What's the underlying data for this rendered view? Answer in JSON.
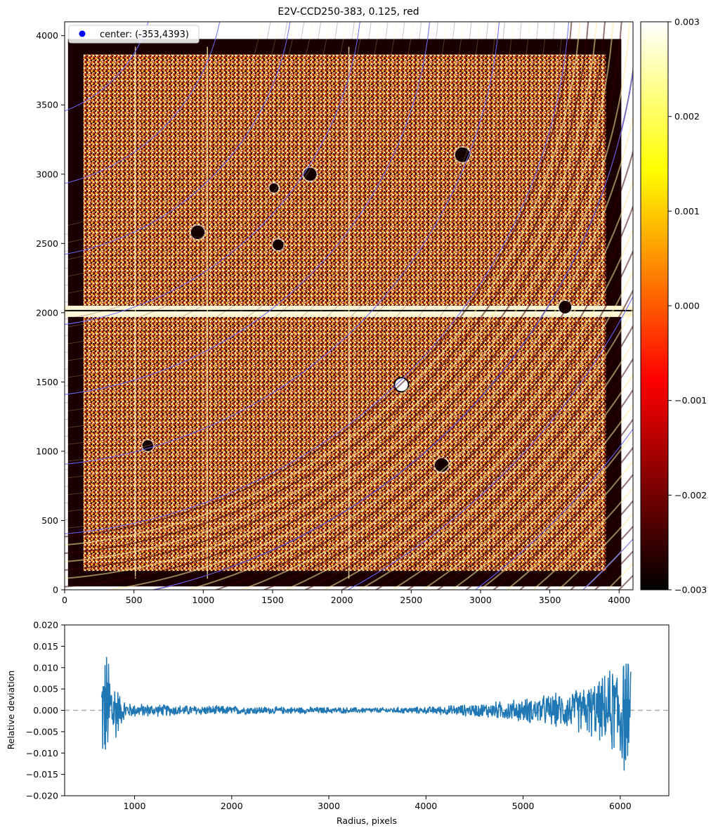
{
  "chart_data": [
    {
      "type": "heatmap",
      "title": "E2V-CCD250-383, 0.125, red",
      "x_ticks": [
        "0",
        "500",
        "1000",
        "1500",
        "2000",
        "2500",
        "3000",
        "3500",
        "4000"
      ],
      "y_ticks": [
        "0",
        "500",
        "1000",
        "1500",
        "2000",
        "2500",
        "3000",
        "3500",
        "4000"
      ],
      "xlim": [
        0,
        4100
      ],
      "ylim": [
        0,
        4100
      ],
      "colormap": "hot",
      "colorbar": {
        "range": [
          -0.003,
          0.003
        ],
        "ticks": [
          "0.003",
          "0.002",
          "0.001",
          "0.000",
          "−0.001",
          "−0.002",
          "−0.003"
        ]
      },
      "legend": {
        "placement": "top-left",
        "marker_color": "#0000ff",
        "label": "center: (-353,4393)"
      },
      "center": {
        "x": -353,
        "y": 4393
      },
      "ring_radii": [
        1000,
        1500,
        2000,
        2500,
        3000,
        3500,
        4000,
        4500,
        5000,
        5500,
        6000
      ],
      "ring_color": "#6a6aff",
      "features": {
        "horizontal_gap_y": 2010,
        "column_defects_x": [
          510,
          1030,
          2050
        ],
        "spots": [
          {
            "x": 2870,
            "y": 3140,
            "r": 38,
            "hollow": false
          },
          {
            "x": 1770,
            "y": 3000,
            "r": 32,
            "hollow": false
          },
          {
            "x": 960,
            "y": 2580,
            "r": 34,
            "hollow": false
          },
          {
            "x": 1540,
            "y": 2490,
            "r": 24,
            "hollow": false
          },
          {
            "x": 1510,
            "y": 2900,
            "r": 18,
            "hollow": false
          },
          {
            "x": 3610,
            "y": 2040,
            "r": 30,
            "hollow": false
          },
          {
            "x": 2430,
            "y": 1480,
            "r": 36,
            "hollow": true
          },
          {
            "x": 2720,
            "y": 900,
            "r": 34,
            "hollow": false
          },
          {
            "x": 600,
            "y": 1040,
            "r": 24,
            "hollow": false
          }
        ]
      }
    },
    {
      "type": "line",
      "xlabel": "Radius, pixels",
      "ylabel": "Relative deviation",
      "xlim": [
        280,
        6500
      ],
      "ylim": [
        -0.02,
        0.02
      ],
      "x_ticks": [
        "1000",
        "2000",
        "3000",
        "4000",
        "5000",
        "6000"
      ],
      "y_ticks": [
        "0.020",
        "0.015",
        "0.010",
        "0.005",
        "0.000",
        "−0.005",
        "−0.010",
        "−0.015",
        "−0.020"
      ],
      "reference_line": {
        "y": 0,
        "style": "dashed",
        "color": "#aaaaaa"
      },
      "series": [
        {
          "color": "#1f77b4",
          "x_range": [
            660,
            6110
          ],
          "amplitude_envelope": [
            [
              660,
              0.014
            ],
            [
              720,
              0.016
            ],
            [
              780,
              0.011
            ],
            [
              850,
              0.004
            ],
            [
              950,
              0.0018
            ],
            [
              1500,
              0.0013
            ],
            [
              2500,
              0.0009
            ],
            [
              3500,
              0.0007
            ],
            [
              4000,
              0.0009
            ],
            [
              4500,
              0.0016
            ],
            [
              5000,
              0.003
            ],
            [
              5500,
              0.005
            ],
            [
              5800,
              0.008
            ],
            [
              5950,
              0.012
            ],
            [
              6030,
              0.018
            ],
            [
              6110,
              0.01
            ]
          ]
        }
      ]
    }
  ]
}
